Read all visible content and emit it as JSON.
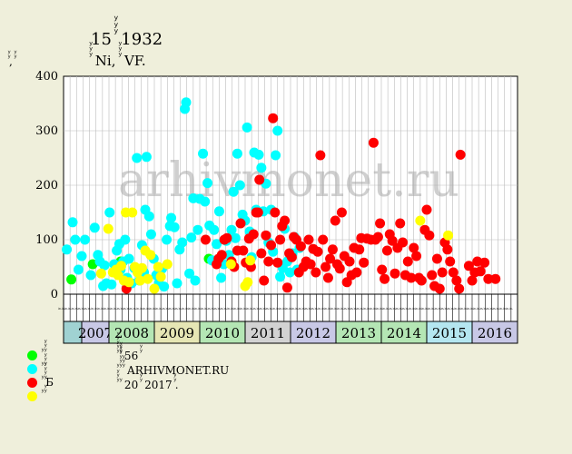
{
  "chart_data": {
    "type": "scatter",
    "title": "15 ꙷꙷꙷ 1932",
    "subtitle": "ꙷꙷꙷ Ni, ꙷꙷꙷ VF.",
    "ylabel": "ꙷꙷ, ꙷꙷ",
    "watermark": "arhivmonet.ru",
    "ylim": [
      0,
      400
    ],
    "y_ticks": [
      0,
      100,
      200,
      300,
      400
    ],
    "grid": true,
    "x_years": [
      "2007",
      "2008",
      "2009",
      "2010",
      "2011",
      "2012",
      "2013",
      "2014",
      "2015",
      "2016"
    ],
    "x_year_colors": [
      "#c8c8e6",
      "#b4e6b4",
      "#e6e6b4",
      "#b4e6b4",
      "#d2d2d2",
      "#c8c8e6",
      "#b4e6b4",
      "#b4e6b4",
      "#b4e6f0",
      "#c8c8e6"
    ],
    "x_leading_color": "#a0d2d2",
    "x_months": [
      "ꙷꙷ",
      "ꙷꙷ",
      "ꙷꙷ",
      "ꙷꙷ",
      "ꙷꙷ",
      "ꙷꙷ",
      "ꙷꙷ",
      "ꙷꙷ",
      "ꙷꙷ",
      "ꙷꙷ",
      "ꙷꙷ",
      "ꙷꙷ",
      "ꙷꙷ",
      "ꙷꙷ",
      "ꙷꙷ",
      "ꙷꙷ",
      "ꙷꙷ",
      "ꙷꙷ",
      "ꙷꙷ",
      "ꙷꙷ",
      "ꙷꙷ",
      "ꙷꙷ",
      "ꙷꙷ",
      "ꙷꙷ",
      "ꙷꙷ",
      "ꙷꙷ",
      "ꙷꙷ",
      "ꙷꙷ",
      "ꙷꙷ",
      "ꙷꙷ",
      "ꙷꙷ",
      "ꙷꙷ",
      "ꙷꙷ",
      "ꙷꙷ",
      "ꙷꙷ",
      "ꙷꙷ",
      "ꙷꙷ",
      "ꙷꙷ",
      "ꙷꙷ",
      "ꙷꙷ",
      "ꙷꙷ",
      "ꙷꙷ",
      "ꙷꙷ",
      "ꙷꙷ",
      "ꙷꙷ",
      "ꙷꙷ",
      "ꙷꙷ",
      "ꙷꙷ",
      "ꙷꙷ",
      "ꙷꙷ",
      "ꙷꙷ",
      "ꙷꙷ",
      "ꙷꙷ",
      "ꙷꙷ",
      "ꙷꙷ",
      "ꙷꙷ",
      "ꙷꙷ",
      "ꙷꙷ",
      "ꙷꙷ",
      "ꙷꙷ",
      "ꙷꙷ",
      "ꙷꙷ",
      "ꙷꙷ",
      "ꙷꙷ",
      "ꙷꙷ",
      "ꙷꙷ",
      "ꙷꙷ",
      "ꙷꙷ",
      "ꙷꙷ",
      "ꙷꙷ"
    ],
    "x_range": [
      0,
      70
    ],
    "series": [
      {
        "name": "ꙷ ꙷꙷꙷ",
        "color": "#00ff00",
        "points": [
          [
            1.2,
            27
          ],
          [
            4.5,
            55
          ],
          [
            8.8,
            60
          ],
          [
            22.4,
            65
          ]
        ]
      },
      {
        "name": "ꙷ ꙷꙷꙷ",
        "color": "#00ffff",
        "points": [
          [
            0.5,
            82
          ],
          [
            1.4,
            132
          ],
          [
            1.8,
            100
          ],
          [
            2.3,
            45
          ],
          [
            2.8,
            70
          ],
          [
            3.3,
            100
          ],
          [
            4.2,
            35
          ],
          [
            4.8,
            122
          ],
          [
            5.3,
            72
          ],
          [
            5.6,
            60
          ],
          [
            6.1,
            15
          ],
          [
            6.3,
            53
          ],
          [
            6.6,
            20
          ],
          [
            7.1,
            150
          ],
          [
            7.4,
            18
          ],
          [
            7.8,
            55
          ],
          [
            8.2,
            80
          ],
          [
            8.6,
            92
          ],
          [
            8.8,
            45
          ],
          [
            9.2,
            60
          ],
          [
            9.5,
            100
          ],
          [
            9.8,
            30
          ],
          [
            10.1,
            65
          ],
          [
            10.5,
            20
          ],
          [
            10.9,
            48
          ],
          [
            11.3,
            250
          ],
          [
            11.7,
            25
          ],
          [
            12.1,
            90
          ],
          [
            12.4,
            40
          ],
          [
            12.6,
            155
          ],
          [
            12.8,
            252
          ],
          [
            13.2,
            143
          ],
          [
            13.5,
            110
          ],
          [
            13.9,
            65
          ],
          [
            14.3,
            35
          ],
          [
            14.7,
            20
          ],
          [
            15.2,
            47
          ],
          [
            15.5,
            14
          ],
          [
            15.9,
            100
          ],
          [
            16.4,
            125
          ],
          [
            16.6,
            140
          ],
          [
            17.1,
            123
          ],
          [
            17.5,
            20
          ],
          [
            17.9,
            82
          ],
          [
            18.3,
            95
          ],
          [
            18.7,
            340
          ],
          [
            18.9,
            352
          ],
          [
            19.4,
            38
          ],
          [
            19.7,
            104
          ],
          [
            20.0,
            176
          ],
          [
            20.3,
            25
          ],
          [
            20.7,
            118
          ],
          [
            21.0,
            175
          ],
          [
            21.5,
            258
          ],
          [
            21.8,
            170
          ],
          [
            22.2,
            204
          ],
          [
            22.5,
            126
          ],
          [
            22.9,
            62
          ],
          [
            23.2,
            118
          ],
          [
            23.6,
            92
          ],
          [
            24.0,
            152
          ],
          [
            24.3,
            30
          ],
          [
            24.7,
            55
          ],
          [
            25.1,
            98
          ],
          [
            25.5,
            72
          ],
          [
            25.9,
            118
          ],
          [
            26.2,
            188
          ],
          [
            26.5,
            103
          ],
          [
            26.8,
            258
          ],
          [
            27.2,
            200
          ],
          [
            27.6,
            146
          ],
          [
            28.0,
            135
          ],
          [
            28.3,
            306
          ],
          [
            28.7,
            115
          ],
          [
            29.0,
            68
          ],
          [
            29.4,
            260
          ],
          [
            29.7,
            155
          ],
          [
            30.1,
            256
          ],
          [
            30.5,
            232
          ],
          [
            30.8,
            152
          ],
          [
            31.2,
            203
          ],
          [
            31.6,
            95
          ],
          [
            32.0,
            155
          ],
          [
            32.3,
            78
          ],
          [
            32.7,
            255
          ],
          [
            33.0,
            300
          ],
          [
            33.4,
            32
          ],
          [
            33.8,
            48
          ],
          [
            34.1,
            120
          ],
          [
            34.5,
            60
          ],
          [
            34.9,
            40
          ],
          [
            35.3,
            75
          ],
          [
            35.6,
            105
          ],
          [
            36.0,
            45
          ],
          [
            36.4,
            85
          ]
        ]
      },
      {
        "name": "ꙷ ꙷꙷꙷꙷБ",
        "color": "#ff0000",
        "points": [
          [
            9.7,
            10
          ],
          [
            21.9,
            100
          ],
          [
            23.6,
            55
          ],
          [
            23.9,
            65
          ],
          [
            24.4,
            72
          ],
          [
            24.8,
            100
          ],
          [
            25.2,
            103
          ],
          [
            25.9,
            60
          ],
          [
            26.3,
            50
          ],
          [
            26.8,
            80
          ],
          [
            27.3,
            130
          ],
          [
            27.7,
            80
          ],
          [
            28.1,
            58
          ],
          [
            28.6,
            102
          ],
          [
            28.9,
            50
          ],
          [
            29.3,
            110
          ],
          [
            29.7,
            150
          ],
          [
            30.0,
            150
          ],
          [
            30.2,
            210
          ],
          [
            30.5,
            75
          ],
          [
            30.9,
            25
          ],
          [
            31.2,
            108
          ],
          [
            31.6,
            60
          ],
          [
            32.0,
            90
          ],
          [
            32.3,
            323
          ],
          [
            32.6,
            150
          ],
          [
            33.0,
            58
          ],
          [
            33.4,
            100
          ],
          [
            33.7,
            125
          ],
          [
            34.1,
            135
          ],
          [
            34.5,
            12
          ],
          [
            34.8,
            75
          ],
          [
            35.2,
            68
          ],
          [
            35.5,
            105
          ],
          [
            35.9,
            100
          ],
          [
            36.3,
            40
          ],
          [
            36.6,
            88
          ],
          [
            37.0,
            50
          ],
          [
            37.4,
            60
          ],
          [
            37.8,
            100
          ],
          [
            38.1,
            55
          ],
          [
            38.5,
            83
          ],
          [
            38.9,
            40
          ],
          [
            39.2,
            78
          ],
          [
            39.6,
            255
          ],
          [
            40.0,
            100
          ],
          [
            40.4,
            50
          ],
          [
            40.8,
            30
          ],
          [
            41.1,
            65
          ],
          [
            41.5,
            82
          ],
          [
            41.9,
            135
          ],
          [
            42.2,
            55
          ],
          [
            42.6,
            47
          ],
          [
            42.9,
            150
          ],
          [
            43.3,
            70
          ],
          [
            43.7,
            22
          ],
          [
            44.1,
            60
          ],
          [
            44.4,
            35
          ],
          [
            44.8,
            85
          ],
          [
            45.2,
            40
          ],
          [
            45.6,
            82
          ],
          [
            45.9,
            103
          ],
          [
            46.3,
            58
          ],
          [
            46.8,
            102
          ],
          [
            47.4,
            100
          ],
          [
            47.8,
            278
          ],
          [
            48.1,
            100
          ],
          [
            48.5,
            105
          ],
          [
            48.8,
            130
          ],
          [
            49.1,
            45
          ],
          [
            49.5,
            28
          ],
          [
            49.9,
            80
          ],
          [
            50.3,
            110
          ],
          [
            50.7,
            98
          ],
          [
            51.1,
            38
          ],
          [
            51.5,
            85
          ],
          [
            51.9,
            130
          ],
          [
            52.3,
            95
          ],
          [
            52.7,
            35
          ],
          [
            53.1,
            60
          ],
          [
            53.6,
            30
          ],
          [
            54.0,
            85
          ],
          [
            54.4,
            70
          ],
          [
            54.8,
            30
          ],
          [
            55.2,
            25
          ],
          [
            55.7,
            118
          ],
          [
            56.0,
            155
          ],
          [
            56.4,
            108
          ],
          [
            56.8,
            35
          ],
          [
            57.2,
            15
          ],
          [
            57.6,
            65
          ],
          [
            58.0,
            10
          ],
          [
            58.4,
            40
          ],
          [
            58.8,
            95
          ],
          [
            59.2,
            82
          ],
          [
            59.6,
            60
          ],
          [
            60.1,
            40
          ],
          [
            60.6,
            25
          ],
          [
            61.2,
            256
          ],
          [
            61.0,
            10
          ],
          [
            62.5,
            52
          ],
          [
            63.0,
            25
          ],
          [
            63.4,
            40
          ],
          [
            63.8,
            60
          ],
          [
            64.3,
            42
          ],
          [
            64.9,
            58
          ],
          [
            65.5,
            28
          ],
          [
            66.6,
            28
          ]
        ]
      },
      {
        "name": "ꙷ ꙷꙷ",
        "color": "#ffff00",
        "points": [
          [
            5.8,
            38
          ],
          [
            6.9,
            120
          ],
          [
            7.6,
            40
          ],
          [
            8.1,
            45
          ],
          [
            8.4,
            35
          ],
          [
            8.9,
            52
          ],
          [
            9.3,
            25
          ],
          [
            9.6,
            150
          ],
          [
            10.1,
            22
          ],
          [
            10.6,
            150
          ],
          [
            11.0,
            50
          ],
          [
            11.4,
            40
          ],
          [
            11.8,
            25
          ],
          [
            12.1,
            48
          ],
          [
            12.6,
            80
          ],
          [
            13.0,
            28
          ],
          [
            13.4,
            72
          ],
          [
            14.0,
            10
          ],
          [
            14.6,
            50
          ],
          [
            15.0,
            32
          ],
          [
            16.0,
            55
          ],
          [
            25.8,
            55
          ],
          [
            28.0,
            15
          ],
          [
            28.4,
            22
          ],
          [
            28.8,
            62
          ],
          [
            55.0,
            135
          ],
          [
            59.3,
            108
          ]
        ]
      }
    ]
  },
  "notes": [
    "ꙷꙷꙷꙷꙷ ꙷꙷ 56 ꙷꙷ",
    "ꙷ ꙷꙷꙷꙷꙷꙷ ꙷꙷꙷ ARHIVMONET.RU",
    "ꙷꙷꙷ ꙷ 20 ꙷꙷ 2017 ꙷꙷ."
  ]
}
